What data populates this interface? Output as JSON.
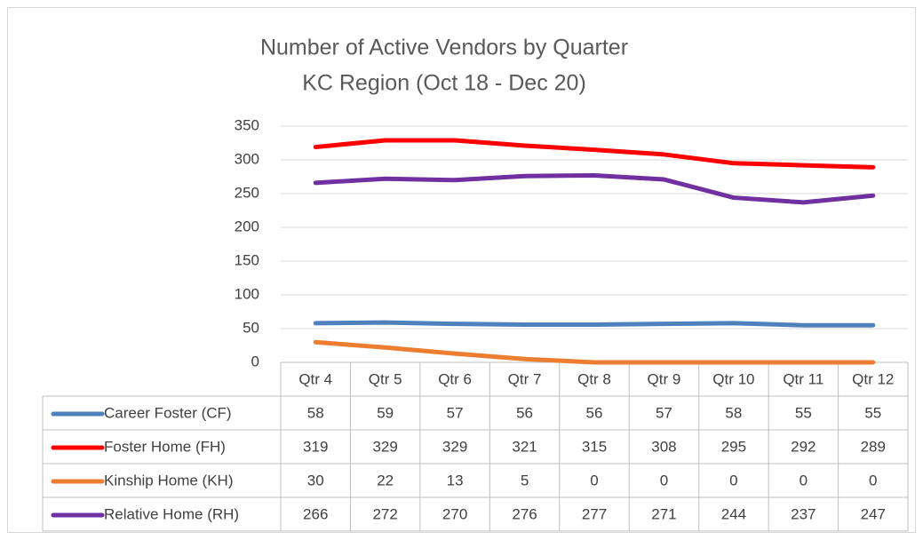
{
  "chart_data": {
    "type": "line",
    "title": "Number of Active Vendors by Quarter",
    "subtitle": "KC Region (Oct 18 - Dec 20)",
    "categories": [
      "Qtr 4",
      "Qtr 5",
      "Qtr 6",
      "Qtr 7",
      "Qtr 8",
      "Qtr 9",
      "Qtr 10",
      "Qtr 11",
      "Qtr 12"
    ],
    "series": [
      {
        "name": "Career Foster (CF)",
        "color": "#4f81bd",
        "values": [
          58,
          59,
          57,
          56,
          56,
          57,
          58,
          55,
          55
        ]
      },
      {
        "name": "Foster Home (FH)",
        "color": "#ff0000",
        "values": [
          319,
          329,
          329,
          321,
          315,
          308,
          295,
          292,
          289
        ]
      },
      {
        "name": "Kinship Home (KH)",
        "color": "#ed7d31",
        "values": [
          30,
          22,
          13,
          5,
          0,
          0,
          0,
          0,
          0
        ]
      },
      {
        "name": "Relative Home (RH)",
        "color": "#7030a0",
        "values": [
          266,
          272,
          270,
          276,
          277,
          271,
          244,
          237,
          247
        ]
      }
    ],
    "ylim": [
      0,
      350
    ],
    "yticks": [
      0,
      50,
      100,
      150,
      200,
      250,
      300,
      350
    ],
    "grid": true,
    "data_table": true
  }
}
